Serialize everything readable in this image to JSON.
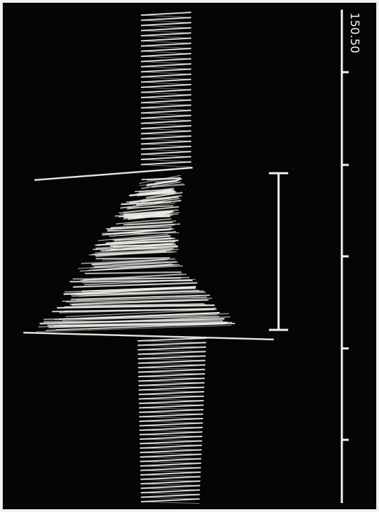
{
  "scale_label": "150.50"
}
